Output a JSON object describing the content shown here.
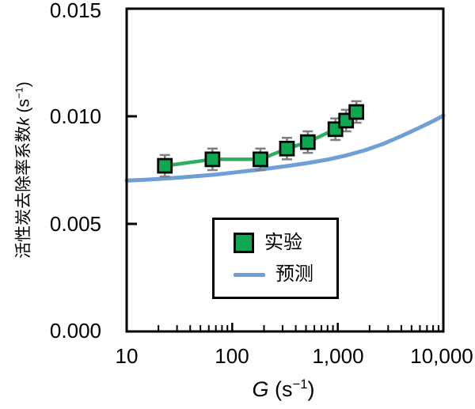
{
  "chart_data": {
    "type": "line",
    "x_axis": {
      "scale": "log",
      "min": 10,
      "max": 10000,
      "tick_values": [
        10,
        100,
        1000,
        10000
      ],
      "tick_labels": [
        "10",
        "100",
        "1,000",
        "10,000"
      ],
      "minor_ticks": "2-9 per decade, drawn inward"
    },
    "y_axis": {
      "scale": "linear",
      "min": 0,
      "max": 0.015,
      "tick_values": [
        0,
        0.005,
        0.01,
        0.015
      ],
      "tick_labels": [
        "0.000",
        "0.005",
        "0.010",
        "0.015"
      ],
      "inner_tick_values": [
        0.005,
        0.01
      ]
    },
    "xlabel": {
      "variable": "G",
      "unit_prefix": " (s",
      "unit_sup": "−1",
      "unit_suffix": ")"
    },
    "ylabel": {
      "cjk": "活性炭去除率系数",
      "variable": "k",
      "unit_prefix": " (s",
      "unit_sup": "−1",
      "unit_suffix": ")"
    },
    "series": [
      {
        "name": "实验",
        "type": "scatter-line",
        "marker": "square",
        "marker_fill": "#0FA850",
        "marker_edge": "#000000",
        "line_color": "#2DAF5F",
        "error_bar_color": "#7F7F7F",
        "x": [
          23,
          65,
          185,
          330,
          520,
          950,
          1200,
          1500
        ],
        "y": [
          0.0077,
          0.008,
          0.008,
          0.0085,
          0.0088,
          0.0094,
          0.0098,
          0.0102
        ],
        "y_err": 0.0005
      },
      {
        "name": "预测",
        "type": "line",
        "line_color": "#6EA0D7",
        "points": [
          [
            10,
            0.00701
          ],
          [
            15,
            0.00705
          ],
          [
            22,
            0.0071
          ],
          [
            33,
            0.00716
          ],
          [
            50,
            0.00723
          ],
          [
            75,
            0.00731
          ],
          [
            110,
            0.0074
          ],
          [
            165,
            0.0075
          ],
          [
            250,
            0.00761
          ],
          [
            370,
            0.00772
          ],
          [
            550,
            0.00785
          ],
          [
            820,
            0.008
          ],
          [
            1200,
            0.00818
          ],
          [
            1800,
            0.00842
          ],
          [
            2700,
            0.00872
          ],
          [
            4000,
            0.00908
          ],
          [
            6000,
            0.00948
          ],
          [
            8000,
            0.00978
          ],
          [
            10000,
            0.01003
          ]
        ]
      }
    ],
    "legend": {
      "position": "inside-bottom-center",
      "entries": [
        {
          "label": "实验",
          "marker": "green-square"
        },
        {
          "label": "预测",
          "marker": "blue-line"
        }
      ]
    },
    "grid": false,
    "plot_border": "full box"
  },
  "colors": {
    "background": "#ffffff",
    "axis": "#000000",
    "experiment_fill": "#0FA850",
    "experiment_line": "#2DAF5F",
    "prediction_line": "#6EA0D7",
    "error_bar": "#7F7F7F"
  }
}
